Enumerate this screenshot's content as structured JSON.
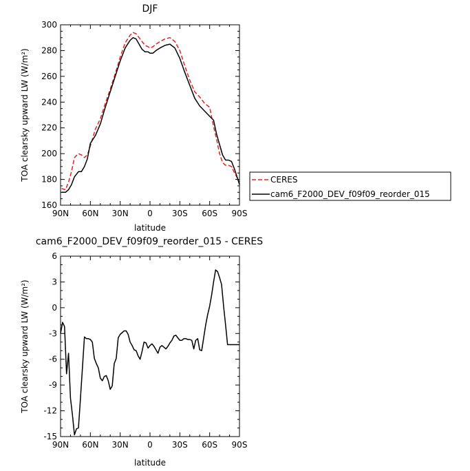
{
  "chart_data": [
    {
      "type": "line",
      "title": "DJF",
      "xlabel": "latitude",
      "ylabel": "TOA clearsky upward LW (W/m²)",
      "xlim": [
        90,
        -90
      ],
      "ylim": [
        160,
        300
      ],
      "xticks": [
        {
          "value": 90,
          "label": "90N"
        },
        {
          "value": 60,
          "label": "60N"
        },
        {
          "value": 30,
          "label": "30N"
        },
        {
          "value": 0,
          "label": "0"
        },
        {
          "value": -30,
          "label": "30S"
        },
        {
          "value": -60,
          "label": "60S"
        },
        {
          "value": -90,
          "label": "90S"
        }
      ],
      "yticks": [
        160,
        180,
        200,
        220,
        240,
        260,
        280,
        300
      ],
      "legend": {
        "position": "right"
      },
      "series": [
        {
          "name": "CERES",
          "color": "#e8201f",
          "dash": "dashed",
          "x": [
            89,
            85,
            82,
            79,
            76,
            72,
            69,
            66,
            63,
            60,
            55,
            50,
            45,
            40,
            35,
            30,
            25,
            20,
            17,
            14,
            11,
            8,
            5,
            2,
            0,
            -3,
            -6,
            -10,
            -15,
            -20,
            -25,
            -30,
            -35,
            -40,
            -45,
            -50,
            -55,
            -60,
            -64,
            -67,
            -70,
            -73,
            -76,
            -79,
            -82,
            -85,
            -88,
            -90
          ],
          "y": [
            173,
            172,
            178,
            186,
            197,
            200,
            199,
            197,
            199,
            206,
            219,
            227,
            239,
            250,
            262,
            275,
            286,
            292,
            294,
            293,
            290,
            287,
            284,
            283,
            282,
            283,
            285,
            287,
            289,
            290,
            287,
            280,
            268,
            257,
            248,
            244,
            239,
            236,
            221,
            211,
            200,
            193,
            191,
            191,
            190,
            185,
            181,
            177
          ]
        },
        {
          "name": "cam6_F2000_DEV_f09f09_reorder_015",
          "color": "#000000",
          "dash": "solid",
          "x": [
            89,
            85,
            82,
            79,
            76,
            72,
            69,
            66,
            63,
            60,
            55,
            50,
            45,
            40,
            35,
            30,
            25,
            20,
            17,
            14,
            11,
            8,
            5,
            2,
            0,
            -3,
            -6,
            -10,
            -15,
            -20,
            -25,
            -30,
            -35,
            -40,
            -45,
            -50,
            -55,
            -60,
            -64,
            -67,
            -70,
            -73,
            -76,
            -79,
            -82,
            -85,
            -88,
            -90
          ],
          "y": [
            170,
            170,
            172,
            176,
            182,
            186,
            186,
            190,
            196,
            208,
            214,
            223,
            236,
            248,
            260,
            272,
            282,
            288,
            290,
            289,
            285,
            281,
            279,
            279,
            278,
            278,
            280,
            282,
            284,
            285,
            282,
            274,
            263,
            253,
            243,
            237,
            233,
            229,
            226,
            215,
            207,
            199,
            195,
            195,
            194,
            188,
            181,
            176
          ]
        }
      ]
    },
    {
      "type": "line",
      "title": "cam6_F2000_DEV_f09f09_reorder_015 - CERES",
      "xlabel": "latitude",
      "ylabel": "TOA clearsky upward LW (W/m²)",
      "xlim": [
        90,
        -90
      ],
      "ylim": [
        -15,
        6
      ],
      "xticks": [
        {
          "value": 90,
          "label": "90N"
        },
        {
          "value": 60,
          "label": "60N"
        },
        {
          "value": 30,
          "label": "30N"
        },
        {
          "value": 0,
          "label": "0"
        },
        {
          "value": -30,
          "label": "30S"
        },
        {
          "value": -60,
          "label": "60S"
        },
        {
          "value": -90,
          "label": "90S"
        }
      ],
      "yticks": [
        -15,
        -12,
        -9,
        -6,
        -3,
        0,
        3,
        6
      ],
      "series": [
        {
          "color": "#000000",
          "dash": "solid",
          "x": [
            90,
            88,
            86,
            84,
            82,
            80,
            78,
            76,
            74,
            72,
            70,
            68,
            66,
            64,
            62,
            60,
            58,
            56,
            54,
            52,
            50,
            48,
            46,
            44,
            42,
            40,
            38,
            36,
            34,
            32,
            30,
            28,
            26,
            24,
            22,
            20,
            18,
            16,
            14,
            12,
            10,
            8,
            6,
            4,
            2,
            0,
            -2,
            -4,
            -6,
            -8,
            -10,
            -12,
            -14,
            -16,
            -18,
            -20,
            -22,
            -24,
            -26,
            -28,
            -30,
            -32,
            -34,
            -36,
            -38,
            -40,
            -42,
            -44,
            -46,
            -48,
            -50,
            -52,
            -54,
            -56,
            -58,
            -60,
            -62,
            -64,
            -66,
            -68,
            -70,
            -72,
            -74,
            -76,
            -78,
            -80,
            -82,
            -84,
            -86,
            -88,
            -90
          ],
          "y": [
            -3.0,
            -1.7,
            -2.2,
            -7.7,
            -5.3,
            -10.5,
            -12.5,
            -14.8,
            -14.1,
            -14.0,
            -10.6,
            -7.0,
            -3.4,
            -3.6,
            -3.6,
            -3.7,
            -4.0,
            -5.9,
            -6.5,
            -7.0,
            -8.2,
            -8.5,
            -8.0,
            -7.9,
            -8.5,
            -9.5,
            -9.1,
            -6.5,
            -5.9,
            -3.5,
            -3.1,
            -2.9,
            -2.7,
            -2.7,
            -3.1,
            -4.0,
            -4.4,
            -4.9,
            -5.0,
            -5.6,
            -6.0,
            -5.1,
            -4.0,
            -4.1,
            -4.7,
            -4.4,
            -4.2,
            -4.5,
            -4.9,
            -5.3,
            -4.6,
            -4.4,
            -4.6,
            -4.8,
            -4.5,
            -4.1,
            -3.8,
            -3.3,
            -3.2,
            -3.5,
            -3.8,
            -3.8,
            -3.6,
            -3.6,
            -3.7,
            -3.7,
            -3.8,
            -4.8,
            -3.8,
            -3.6,
            -4.9,
            -5.0,
            -3.5,
            -2.0,
            -0.8,
            0.2,
            1.5,
            3.0,
            4.4,
            4.2,
            3.5,
            2.7,
            0.2,
            -2.0,
            -4.3,
            -4.3,
            -4.3,
            -4.3,
            -4.3,
            -4.3,
            -4.3
          ]
        }
      ]
    }
  ]
}
